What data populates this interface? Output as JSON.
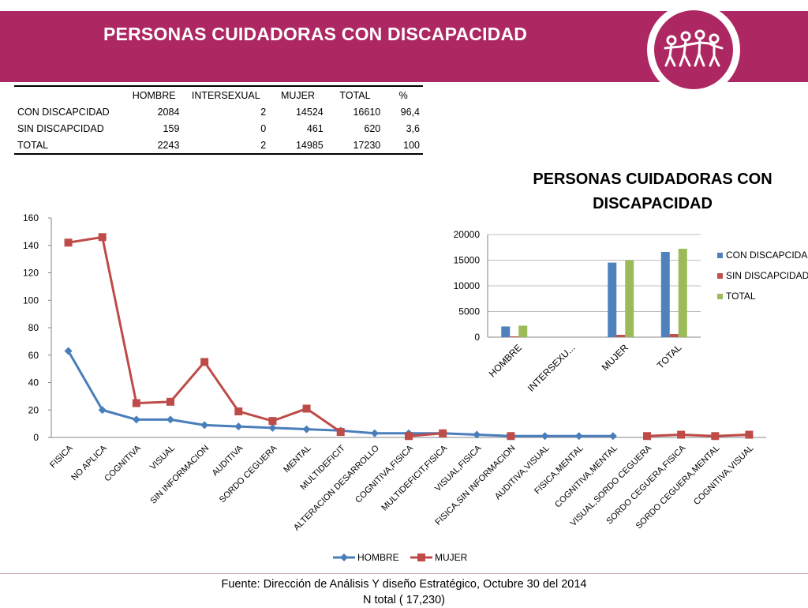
{
  "header": {
    "title": "PERSONAS  CUIDADORAS CON DISCAPACIDAD",
    "band_color": "#ad2862"
  },
  "logo": {
    "icon": "people-holding-hands-logo"
  },
  "summary_table": {
    "columns": [
      "",
      "HOMBRE",
      "INTERSEXUAL",
      "MUJER",
      "TOTAL",
      "%"
    ],
    "rows": [
      [
        "CON DISCAPCIDAD",
        "2084",
        "2",
        "14524",
        "16610",
        "96,4"
      ],
      [
        "SIN DISCAPCIDAD",
        "159",
        "0",
        "461",
        "620",
        "3,6"
      ],
      [
        "TOTAL",
        "2243",
        "2",
        "14985",
        "17230",
        "100"
      ]
    ]
  },
  "chart_data": [
    {
      "type": "line",
      "title": "",
      "xlabel": "",
      "ylabel": "",
      "ylim": [
        0,
        160
      ],
      "yticks": [
        0,
        20,
        40,
        60,
        80,
        100,
        120,
        140,
        160
      ],
      "grid": false,
      "legend_position": "bottom",
      "categories": [
        "FISICA",
        "NO APLICA",
        "COGNITIVA",
        "VISUAL",
        "SIN INFORMACION",
        "AUDITIVA",
        "SORDO CEGUERA",
        "MENTAL",
        "MULTIDEFICIT",
        "ALTERACION DESARROLLO",
        "COGNITIVA,FISICA",
        "MULTIDEFICIT,FISICA",
        "VISUAL,FISICA",
        "FISICA,SIN INFORMACION",
        "AUDITIVA,VISUAL",
        "FISICA,MENTAL",
        "COGNITIVA,MENTAL",
        "VISUAL,SORDO CEGUERA",
        "SORDO CEGUERA,FISICA",
        "SORDO CEGUERA,MENTAL",
        "COGNITIVA,VISUAL"
      ],
      "series": [
        {
          "name": "HOMBRE",
          "color": "#4a7ebb",
          "marker": "diamond",
          "values": [
            63,
            20,
            13,
            13,
            9,
            8,
            7,
            6,
            5,
            3,
            3,
            3,
            2,
            1,
            1,
            1,
            1,
            null,
            null,
            null,
            null
          ]
        },
        {
          "name": "MUJER",
          "color": "#be4b48",
          "marker": "square",
          "values": [
            142,
            146,
            25,
            26,
            55,
            19,
            12,
            21,
            4,
            null,
            1,
            3,
            null,
            1,
            null,
            null,
            null,
            1,
            2,
            1,
            2
          ]
        }
      ]
    },
    {
      "type": "bar",
      "title": "PERSONAS CUIDADORAS CON DISCAPACIDAD",
      "xlabel": "",
      "ylabel": "",
      "ylim": [
        0,
        20000
      ],
      "yticks": [
        0,
        5000,
        10000,
        15000,
        20000
      ],
      "grid": true,
      "legend_position": "right",
      "categories": [
        "HOMBRE",
        "INTERSEXU...",
        "MUJER",
        "TOTAL"
      ],
      "series": [
        {
          "name": "CON DISCAPCIDAD",
          "color": "#4f81bd",
          "values": [
            2084,
            2,
            14524,
            16610
          ]
        },
        {
          "name": "SIN DISCAPCIDAD",
          "color": "#c0504d",
          "values": [
            159,
            0,
            461,
            620
          ]
        },
        {
          "name": "TOTAL",
          "color": "#9bbb59",
          "values": [
            2243,
            2,
            14985,
            17230
          ]
        }
      ]
    }
  ],
  "footer": {
    "source": "Fuente: Dirección de Análisis Y diseño Estratégico, Octubre 30 del 2014",
    "total": "N total ( 17,230)"
  }
}
